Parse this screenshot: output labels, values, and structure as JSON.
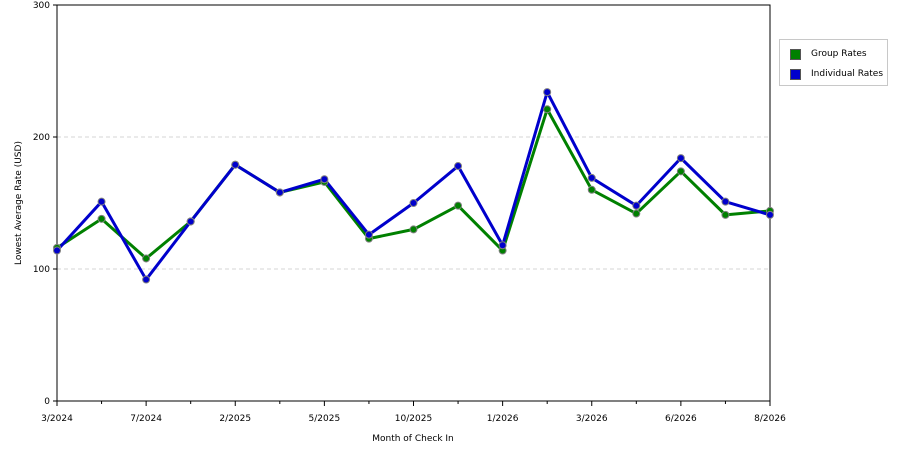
{
  "chart_data": {
    "type": "line",
    "xlabel": "Month of Check In",
    "ylabel": "Lowest Average Rate (USD)",
    "ylim": [
      0,
      300
    ],
    "yticks": [
      0,
      100,
      200,
      300
    ],
    "grid": "horizontal-dashed",
    "legend_position": "right",
    "x_tick_labels": [
      "3/2024",
      "7/2024",
      "2/2025",
      "5/2025",
      "10/2025",
      "1/2026",
      "3/2026",
      "6/2026",
      "8/2026"
    ],
    "series": [
      {
        "name": "Group Rates",
        "color": "#008000",
        "values": [
          116,
          138,
          108,
          136,
          179,
          158,
          166,
          123,
          130,
          148,
          114,
          221,
          160,
          142,
          174,
          141,
          144
        ]
      },
      {
        "name": "Individual Rates",
        "color": "#0000cc",
        "values": [
          114,
          151,
          92,
          136,
          179,
          158,
          168,
          126,
          150,
          178,
          118,
          234,
          169,
          148,
          184,
          151,
          141
        ]
      }
    ]
  }
}
